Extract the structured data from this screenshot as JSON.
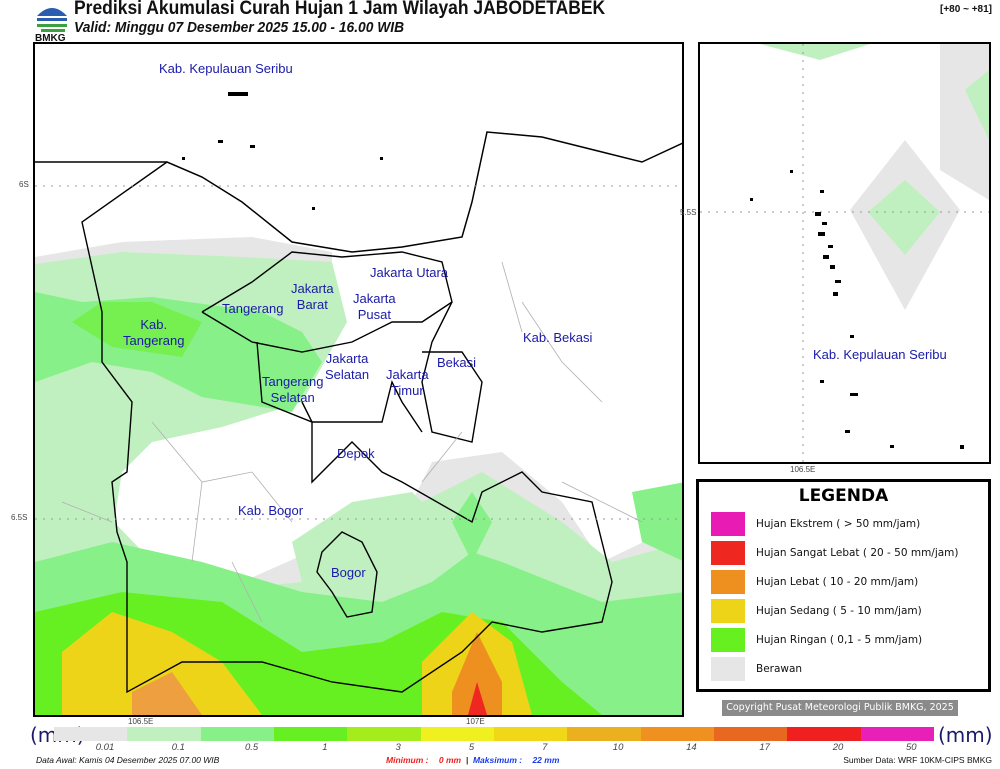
{
  "header": {
    "title": "Prediksi Akumulasi Curah Hujan 1 Jam Wilayah JABODETABEK",
    "valid": "Valid: Minggu 07 Desember 2025 15.00 - 16.00 WIB",
    "range": "[+80 ~ +81]",
    "logo_text": "BMKG"
  },
  "main_map": {
    "labels": [
      "Kab. Kepulauan Seribu",
      "Kab.\nTangerang",
      "Tangerang",
      "Jakarta\nBarat",
      "Jakarta Utara",
      "Jakarta\nPusat",
      "Jakarta\nSelatan",
      "Jakarta\nTimur",
      "Bekasi",
      "Kab. Bekasi",
      "Tangerang\nSelatan",
      "Depok",
      "Kab. Bogor",
      "Bogor"
    ],
    "ticks": {
      "lat": [
        "6S",
        "6.5S"
      ],
      "lon": [
        "106.5E",
        "107E"
      ]
    }
  },
  "inset_map": {
    "label": "Kab. Kepulauan Seribu",
    "ticks": {
      "lat": "5.5S",
      "lon": "106.5E"
    }
  },
  "legend": {
    "title": "LEGENDA",
    "items": [
      {
        "label": "Hujan Ekstrem ( > 50 mm/jam)",
        "color": "#e81cb4"
      },
      {
        "label": "Hujan Sangat Lebat ( 20 - 50 mm/jam)",
        "color": "#ee2820"
      },
      {
        "label": "Hujan Lebat ( 10 - 20 mm/jam)",
        "color": "#ee9020"
      },
      {
        "label": "Hujan Sedang ( 5 - 10 mm/jam)",
        "color": "#eed418"
      },
      {
        "label": "Hujan Ringan ( 0,1 - 5 mm/jam)",
        "color": "#66f020"
      },
      {
        "label": "Berawan",
        "color": "#e6e6e6"
      }
    ]
  },
  "copyright": "Copyright Pusat Meteorologi Publik BMKG, 2025",
  "colorbar": {
    "unit": "(mm)",
    "colors": [
      "#e6e6e6",
      "#c0f0c0",
      "#88f088",
      "#66f022",
      "#a4ec1c",
      "#f0f020",
      "#f0d818",
      "#eab020",
      "#f09020",
      "#e86820",
      "#f02020",
      "#e820b8"
    ],
    "labels": [
      "0.01",
      "0.1",
      "0.5",
      "1",
      "3",
      "5",
      "7",
      "10",
      "14",
      "17",
      "20",
      "50"
    ]
  },
  "footer": {
    "data_awal": "Data Awal: Kamis 04 Desember 2025 07.00 WIB",
    "minimum_label": "Minimum :",
    "minimum_value": "0 mm",
    "maksimum_label": "Maksimum :",
    "maksimum_value": "22 mm",
    "source": "Sumber Data: WRF 10KM-CIPS BMKG"
  }
}
